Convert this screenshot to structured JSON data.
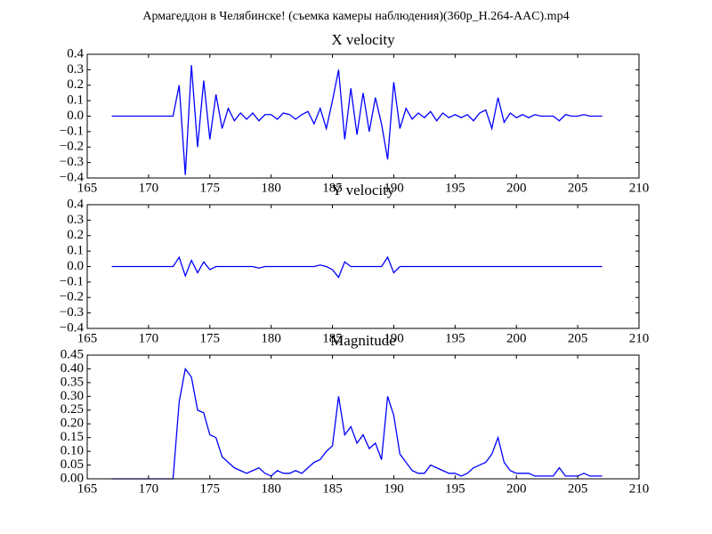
{
  "title": "Армагеддон в Челябинске! (съемка камеры наблюдения)(360p_H.264-AAC).mp4",
  "chart_data": [
    {
      "type": "line",
      "title": "X velocity",
      "x": [
        167,
        167.5,
        168,
        168.5,
        169,
        169.5,
        170,
        170.5,
        171,
        171.5,
        172,
        172.5,
        173,
        173.5,
        174,
        174.5,
        175,
        175.5,
        176,
        176.5,
        177,
        177.5,
        178,
        178.5,
        179,
        179.5,
        180,
        180.5,
        181,
        181.5,
        182,
        182.5,
        183,
        183.5,
        184,
        184.5,
        185,
        185.5,
        186,
        186.5,
        187,
        187.5,
        188,
        188.5,
        189,
        189.5,
        190,
        190.5,
        191,
        191.5,
        192,
        192.5,
        193,
        193.5,
        194,
        194.5,
        195,
        195.5,
        196,
        196.5,
        197,
        197.5,
        198,
        198.5,
        199,
        199.5,
        200,
        200.5,
        201,
        201.5,
        202,
        202.5,
        203,
        203.5,
        204,
        204.5,
        205,
        205.5,
        206,
        206.5,
        207
      ],
      "series": [
        {
          "color": "#0000ff",
          "values": [
            0,
            0,
            0,
            0,
            0,
            0,
            0,
            0,
            0,
            0,
            0,
            0.2,
            -0.38,
            0.33,
            -0.2,
            0.23,
            -0.15,
            0.14,
            -0.08,
            0.05,
            -0.03,
            0.02,
            -0.02,
            0.02,
            -0.03,
            0.01,
            0.01,
            -0.02,
            0.02,
            0.01,
            -0.02,
            0.01,
            0.03,
            -0.05,
            0.05,
            -0.08,
            0.1,
            0.3,
            -0.15,
            0.18,
            -0.12,
            0.15,
            -0.1,
            0.12,
            -0.05,
            -0.28,
            0.22,
            -0.08,
            0.05,
            -0.02,
            0.02,
            -0.01,
            0.03,
            -0.03,
            0.02,
            -0.01,
            0.01,
            -0.01,
            0.01,
            -0.03,
            0.02,
            0.04,
            -0.08,
            0.12,
            -0.04,
            0.02,
            -0.01,
            0.01,
            -0.01,
            0.01,
            0,
            0,
            0,
            -0.03,
            0.01,
            0,
            0,
            0.01,
            0,
            0,
            0
          ]
        }
      ],
      "xlim": [
        165,
        210
      ],
      "xticks": [
        165,
        170,
        175,
        180,
        185,
        190,
        195,
        200,
        205,
        210
      ],
      "ylim": [
        -0.4,
        0.4
      ],
      "yticks": [
        {
          "value": -0.4,
          "label": "−0.4"
        },
        {
          "value": -0.3,
          "label": "−0.3"
        },
        {
          "value": -0.2,
          "label": "−0.2"
        },
        {
          "value": -0.1,
          "label": "−0.1"
        },
        {
          "value": 0,
          "label": "0.0"
        },
        0.1,
        0.2,
        0.3,
        0.4
      ]
    },
    {
      "type": "line",
      "title": "Y velocity",
      "x": [
        167,
        167.5,
        168,
        168.5,
        169,
        169.5,
        170,
        170.5,
        171,
        171.5,
        172,
        172.5,
        173,
        173.5,
        174,
        174.5,
        175,
        175.5,
        176,
        176.5,
        177,
        177.5,
        178,
        178.5,
        179,
        179.5,
        180,
        180.5,
        181,
        181.5,
        182,
        182.5,
        183,
        183.5,
        184,
        184.5,
        185,
        185.5,
        186,
        186.5,
        187,
        187.5,
        188,
        188.5,
        189,
        189.5,
        190,
        190.5,
        191,
        191.5,
        192,
        192.5,
        193,
        193.5,
        194,
        194.5,
        195,
        195.5,
        196,
        196.5,
        197,
        197.5,
        198,
        198.5,
        199,
        199.5,
        200,
        200.5,
        201,
        201.5,
        202,
        202.5,
        203,
        203.5,
        204,
        204.5,
        205,
        205.5,
        206,
        206.5,
        207
      ],
      "series": [
        {
          "color": "#0000ff",
          "values": [
            0,
            0,
            0,
            0,
            0,
            0,
            0,
            0,
            0,
            0,
            0,
            0.06,
            -0.06,
            0.04,
            -0.04,
            0.03,
            -0.02,
            0,
            0,
            0,
            0,
            0,
            0,
            0,
            -0.01,
            0,
            0,
            0,
            0,
            0,
            0,
            0,
            0,
            0,
            0.01,
            0,
            -0.02,
            -0.07,
            0.03,
            0,
            0,
            0,
            0,
            0,
            0,
            0.06,
            -0.04,
            0,
            0,
            0,
            0,
            0,
            0,
            0,
            0,
            0,
            0,
            0,
            0,
            0,
            0,
            0,
            0,
            0,
            0,
            0,
            0,
            0,
            0,
            0,
            0,
            0,
            0,
            0,
            0,
            0,
            0,
            0,
            0,
            0,
            0
          ]
        }
      ],
      "xlim": [
        165,
        210
      ],
      "xticks": [
        165,
        170,
        175,
        180,
        185,
        190,
        195,
        200,
        205,
        210
      ],
      "ylim": [
        -0.4,
        0.4
      ],
      "yticks": [
        {
          "value": -0.4,
          "label": "−0.4"
        },
        {
          "value": -0.3,
          "label": "−0.3"
        },
        {
          "value": -0.2,
          "label": "−0.2"
        },
        {
          "value": -0.1,
          "label": "−0.1"
        },
        {
          "value": 0,
          "label": "0.0"
        },
        0.1,
        0.2,
        0.3,
        0.4
      ]
    },
    {
      "type": "line",
      "title": "Magnitude",
      "x": [
        167,
        167.5,
        168,
        168.5,
        169,
        169.5,
        170,
        170.5,
        171,
        171.5,
        172,
        172.5,
        173,
        173.5,
        174,
        174.5,
        175,
        175.5,
        176,
        176.5,
        177,
        177.5,
        178,
        178.5,
        179,
        179.5,
        180,
        180.5,
        181,
        181.5,
        182,
        182.5,
        183,
        183.5,
        184,
        184.5,
        185,
        185.5,
        186,
        186.5,
        187,
        187.5,
        188,
        188.5,
        189,
        189.5,
        190,
        190.5,
        191,
        191.5,
        192,
        192.5,
        193,
        193.5,
        194,
        194.5,
        195,
        195.5,
        196,
        196.5,
        197,
        197.5,
        198,
        198.5,
        199,
        199.5,
        200,
        200.5,
        201,
        201.5,
        202,
        202.5,
        203,
        203.5,
        204,
        204.5,
        205,
        205.5,
        206,
        206.5,
        207
      ],
      "series": [
        {
          "color": "#0000ff",
          "values": [
            0,
            0,
            0,
            0,
            0,
            0,
            0,
            0,
            0,
            0,
            0,
            0.28,
            0.4,
            0.37,
            0.25,
            0.24,
            0.16,
            0.15,
            0.08,
            0.06,
            0.04,
            0.03,
            0.02,
            0.03,
            0.04,
            0.02,
            0.01,
            0.03,
            0.02,
            0.02,
            0.03,
            0.02,
            0.04,
            0.06,
            0.07,
            0.1,
            0.12,
            0.3,
            0.16,
            0.19,
            0.13,
            0.16,
            0.11,
            0.13,
            0.07,
            0.3,
            0.23,
            0.09,
            0.06,
            0.03,
            0.02,
            0.02,
            0.05,
            0.04,
            0.03,
            0.02,
            0.02,
            0.01,
            0.02,
            0.04,
            0.05,
            0.06,
            0.09,
            0.15,
            0.06,
            0.03,
            0.02,
            0.02,
            0.02,
            0.01,
            0.01,
            0.01,
            0.01,
            0.04,
            0.01,
            0.01,
            0.01,
            0.02,
            0.01,
            0.01,
            0.01
          ]
        }
      ],
      "xlim": [
        165,
        210
      ],
      "xticks": [
        165,
        170,
        175,
        180,
        185,
        190,
        195,
        200,
        205,
        210
      ],
      "ylim": [
        0,
        0.45
      ],
      "yticks": [
        {
          "value": 0,
          "label": "0.00"
        },
        0.05,
        {
          "value": 0.1,
          "label": "0.10"
        },
        0.15,
        {
          "value": 0.2,
          "label": "0.20"
        },
        0.25,
        {
          "value": 0.3,
          "label": "0.30"
        },
        0.35,
        {
          "value": 0.4,
          "label": "0.40"
        },
        0.45
      ]
    }
  ]
}
